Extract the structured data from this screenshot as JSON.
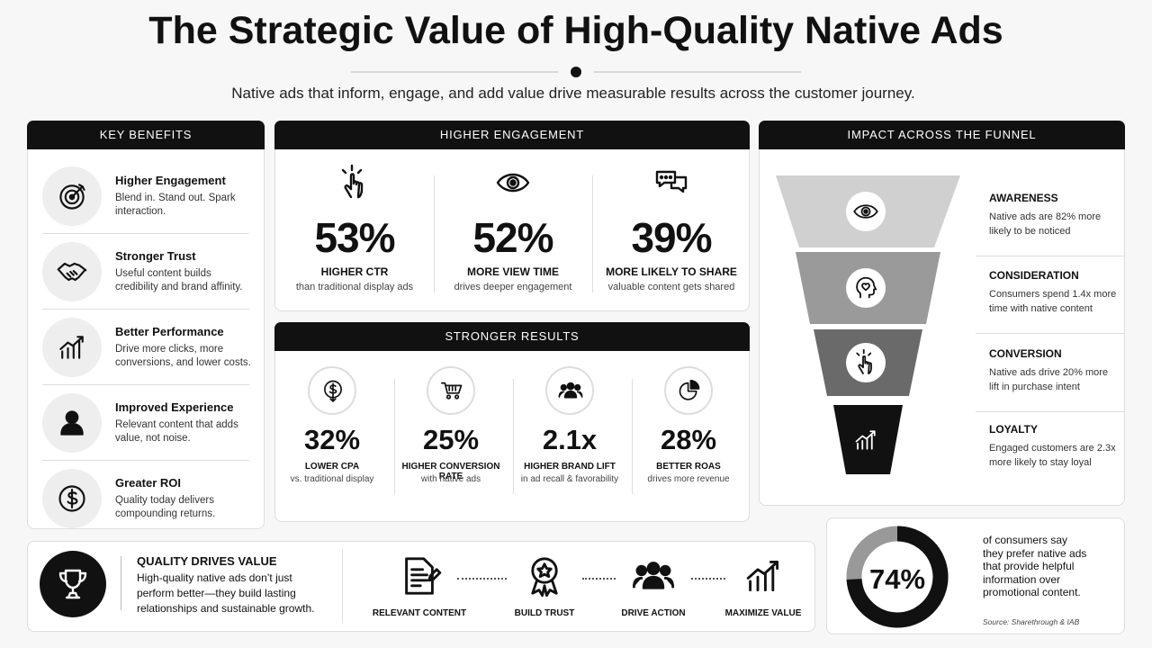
{
  "header": {
    "title": "The Strategic Value of High-Quality Native Ads",
    "subtitle": "Native ads that inform, engage, and add value drive measurable results across the customer journey."
  },
  "key_benefits": {
    "title": "KEY BENEFITS",
    "items": [
      {
        "title": "Higher Engagement",
        "text": "Blend in. Stand out. Spark interaction."
      },
      {
        "title": "Stronger Trust",
        "text": "Useful content builds credibility and brand affinity."
      },
      {
        "title": "Better Performance",
        "text": "Drive more clicks, more conversions, and lower costs."
      },
      {
        "title": "Improved Experience",
        "text": "Relevant content that adds value, not noise."
      },
      {
        "title": "Greater ROI",
        "text": "Quality today delivers compounding returns."
      }
    ]
  },
  "higher_engagement": {
    "title": "HIGHER ENGAGEMENT",
    "stats": [
      {
        "value": "53%",
        "label": "HIGHER CTR",
        "note": "than traditional display ads"
      },
      {
        "value": "52%",
        "label": "MORE VIEW TIME",
        "note": "drives deeper engagement"
      },
      {
        "value": "39%",
        "label": "MORE LIKELY TO SHARE",
        "note": "valuable content gets shared"
      }
    ]
  },
  "stronger_results": {
    "title": "STRONGER RESULTS",
    "stats": [
      {
        "value": "32%",
        "label": "LOWER CPA",
        "note": "vs. traditional display"
      },
      {
        "value": "25%",
        "label": "HIGHER CONVERSION RATE",
        "note": "with native ads"
      },
      {
        "value": "2.1x",
        "label": "HIGHER BRAND LIFT",
        "note": "in ad recall & favorability"
      },
      {
        "value": "28%",
        "label": "BETTER ROAS",
        "note": "drives more revenue"
      }
    ]
  },
  "funnel": {
    "title": "IMPACT ACROSS THE FUNNEL",
    "stages": [
      {
        "title": "AWARENESS",
        "text": "Native ads are 82% more likely to be noticed"
      },
      {
        "title": "CONSIDERATION",
        "text": "Consumers spend 1.4x more time with native content"
      },
      {
        "title": "CONVERSION",
        "text": "Native ads drive 20% more lift in purchase intent"
      },
      {
        "title": "LOYALTY",
        "text": "Engaged customers are 2.3x more likely to stay loyal"
      }
    ]
  },
  "quality": {
    "title": "QUALITY DRIVES VALUE",
    "text": "High-quality native ads don’t just perform better—they build lasting relationships and sustainable growth.",
    "steps": [
      "RELEVANT CONTENT",
      "BUILD TRUST",
      "DRIVE ACTION",
      "MAXIMIZE VALUE"
    ]
  },
  "stat_card": {
    "percent": {
      "value": 74,
      "label": "74%"
    },
    "text": "of consumers say they prefer native ads that provide helpful information over promotional content.",
    "source": "Source: Sharethrough & IAB"
  }
}
